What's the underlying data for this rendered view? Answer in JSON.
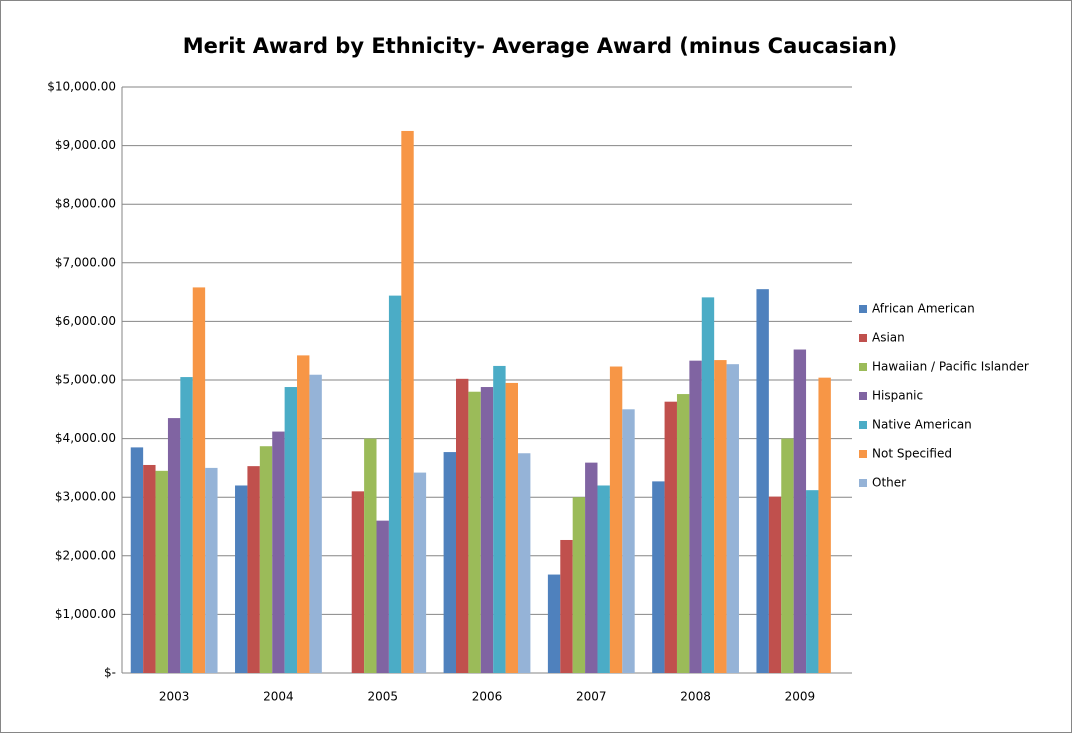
{
  "chart_data": {
    "type": "bar",
    "title": "Merit Award by Ethnicity- Average Award (minus Caucasian)",
    "categories": [
      "2003",
      "2004",
      "2005",
      "2006",
      "2007",
      "2008",
      "2009"
    ],
    "series": [
      {
        "name": "African American",
        "color": "#4F81BD",
        "values": [
          3850,
          3200,
          null,
          3770,
          1680,
          3270,
          6550
        ]
      },
      {
        "name": "Asian",
        "color": "#C0504D",
        "values": [
          3550,
          3530,
          3100,
          5020,
          2270,
          4630,
          3010
        ]
      },
      {
        "name": "Hawaiian / Pacific Islander",
        "color": "#9BBB59",
        "values": [
          3450,
          3870,
          4000,
          4800,
          3000,
          4760,
          4000
        ]
      },
      {
        "name": "Hispanic",
        "color": "#8064A2",
        "values": [
          4350,
          4120,
          2600,
          4880,
          3590,
          5330,
          5520
        ]
      },
      {
        "name": "Native American",
        "color": "#4BACC6",
        "values": [
          5050,
          4880,
          6440,
          5240,
          3200,
          6410,
          3120
        ]
      },
      {
        "name": "Not Specified",
        "color": "#F79646",
        "values": [
          6580,
          5420,
          9250,
          4950,
          5230,
          5340,
          5040
        ]
      },
      {
        "name": "Other",
        "color": "#95B3D7",
        "values": [
          3500,
          5090,
          3420,
          3750,
          4500,
          5270,
          null
        ]
      }
    ],
    "ylim": [
      0,
      10000
    ],
    "yticks": [
      {
        "value": 0,
        "label": "$-"
      },
      {
        "value": 1000,
        "label": "$1,000.00"
      },
      {
        "value": 2000,
        "label": "$2,000.00"
      },
      {
        "value": 3000,
        "label": "$3,000.00"
      },
      {
        "value": 4000,
        "label": "$4,000.00"
      },
      {
        "value": 5000,
        "label": "$5,000.00"
      },
      {
        "value": 6000,
        "label": "$6,000.00"
      },
      {
        "value": 7000,
        "label": "$7,000.00"
      },
      {
        "value": 8000,
        "label": "$8,000.00"
      },
      {
        "value": 9000,
        "label": "$9,000.00"
      },
      {
        "value": 10000,
        "label": "$10,000.00"
      }
    ],
    "grid": true,
    "legend": "right"
  }
}
